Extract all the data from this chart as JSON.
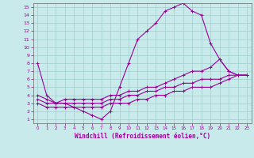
{
  "title": "",
  "xlabel": "Windchill (Refroidissement éolien,°C)",
  "ylabel": "",
  "xlim": [
    -0.5,
    23.5
  ],
  "ylim": [
    0.5,
    15.5
  ],
  "xticks": [
    0,
    1,
    2,
    3,
    4,
    5,
    6,
    7,
    8,
    9,
    10,
    11,
    12,
    13,
    14,
    15,
    16,
    17,
    18,
    19,
    20,
    21,
    22,
    23
  ],
  "yticks": [
    1,
    2,
    3,
    4,
    5,
    6,
    7,
    8,
    9,
    10,
    11,
    12,
    13,
    14,
    15
  ],
  "bg_color": "#c8eaea",
  "grid_color": "#a0cccc",
  "line_color": "#990099",
  "line_width": 0.8,
  "marker": "+",
  "marker_size": 3,
  "lines": [
    {
      "x": [
        0,
        1,
        2,
        3,
        4,
        5,
        6,
        7,
        8,
        9,
        10,
        11,
        12,
        13,
        14,
        15,
        16,
        17,
        18,
        19,
        20,
        21,
        22,
        23
      ],
      "y": [
        8,
        4,
        3,
        3,
        2.5,
        2,
        1.5,
        1,
        2,
        5,
        8,
        11,
        12,
        13,
        14.5,
        15,
        15.5,
        14.5,
        14,
        10.5,
        8.5,
        7,
        6.5,
        6.5
      ]
    },
    {
      "x": [
        0,
        1,
        2,
        3,
        4,
        5,
        6,
        7,
        8,
        9,
        10,
        11,
        12,
        13,
        14,
        15,
        16,
        17,
        18,
        19,
        20,
        21,
        22,
        23
      ],
      "y": [
        4,
        3.5,
        3,
        3.5,
        3.5,
        3.5,
        3.5,
        3.5,
        4,
        4,
        4.5,
        4.5,
        5,
        5,
        5.5,
        6,
        6.5,
        7,
        7,
        7.5,
        8.5,
        7,
        6.5,
        6.5
      ]
    },
    {
      "x": [
        0,
        1,
        2,
        3,
        4,
        5,
        6,
        7,
        8,
        9,
        10,
        11,
        12,
        13,
        14,
        15,
        16,
        17,
        18,
        19,
        20,
        21,
        22,
        23
      ],
      "y": [
        3.5,
        3,
        3,
        3,
        3,
        3,
        3,
        3,
        3.5,
        3.5,
        4,
        4,
        4.5,
        4.5,
        5,
        5,
        5.5,
        5.5,
        6,
        6,
        6,
        6.5,
        6.5,
        6.5
      ]
    },
    {
      "x": [
        0,
        1,
        2,
        3,
        4,
        5,
        6,
        7,
        8,
        9,
        10,
        11,
        12,
        13,
        14,
        15,
        16,
        17,
        18,
        19,
        20,
        21,
        22,
        23
      ],
      "y": [
        3,
        2.5,
        2.5,
        2.5,
        2.5,
        2.5,
        2.5,
        2.5,
        3,
        3,
        3,
        3.5,
        3.5,
        4,
        4,
        4.5,
        4.5,
        5,
        5,
        5,
        5.5,
        6,
        6.5,
        6.5
      ]
    }
  ]
}
